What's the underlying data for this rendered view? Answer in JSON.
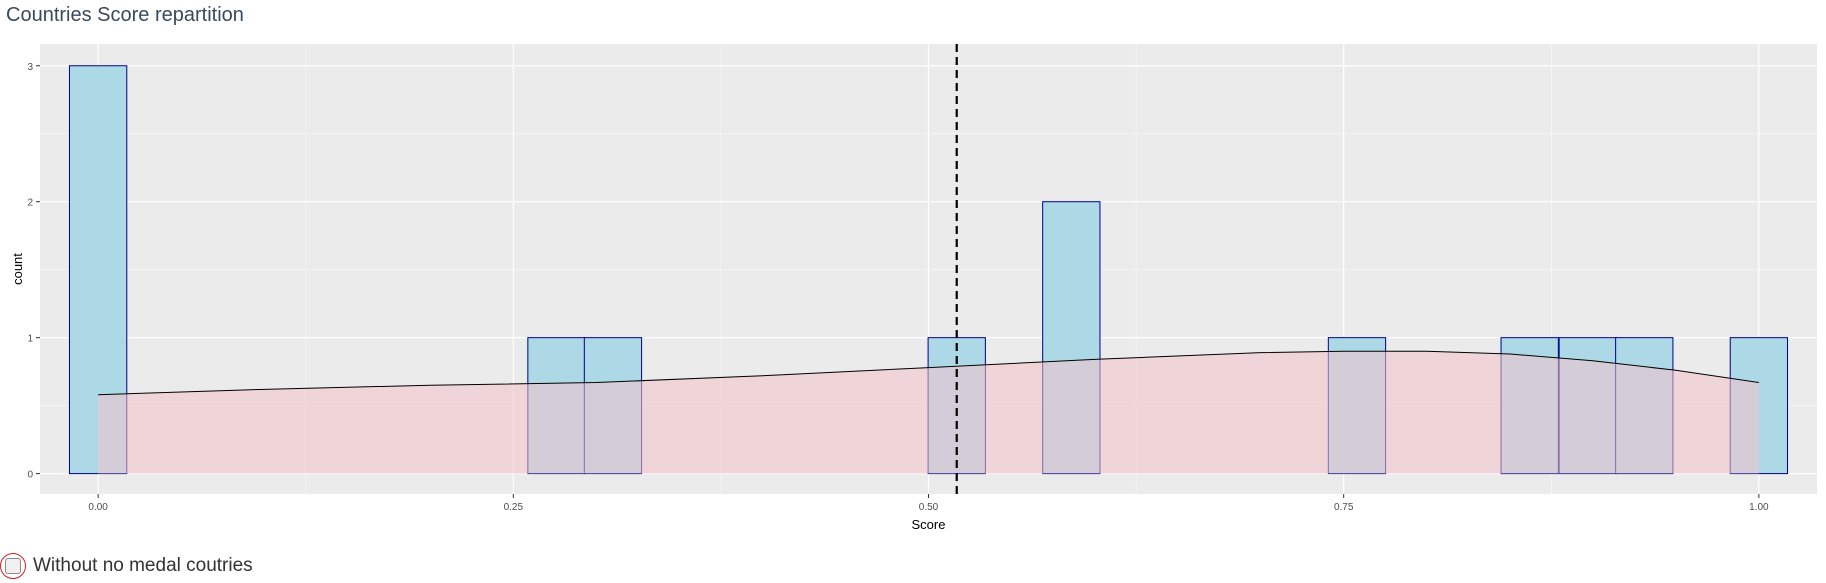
{
  "panel": {
    "title": "Countries Score repartition"
  },
  "option": {
    "label": "Without no medal coutries",
    "checked": false
  },
  "chart_data": {
    "type": "histogram",
    "xlabel": "Score",
    "ylabel": "count",
    "xlim": [
      -0.035,
      1.035
    ],
    "ylim": [
      -0.15,
      3.16
    ],
    "xticks": [
      0,
      0.25,
      0.5,
      0.75,
      1
    ],
    "xtick_labels": [
      "0.00",
      "0.25",
      "0.50",
      "0.75",
      "1.00"
    ],
    "yticks": [
      0,
      1,
      2,
      3
    ],
    "ytick_labels": [
      "0",
      "1",
      "2",
      "3"
    ],
    "bin_width": 0.0345,
    "bins": [
      {
        "center": 0.0,
        "count": 3
      },
      {
        "center": 0.276,
        "count": 1
      },
      {
        "center": 0.31,
        "count": 1
      },
      {
        "center": 0.517,
        "count": 1
      },
      {
        "center": 0.586,
        "count": 2
      },
      {
        "center": 0.758,
        "count": 1
      },
      {
        "center": 0.862,
        "count": 1
      },
      {
        "center": 0.897,
        "count": 1
      },
      {
        "center": 0.931,
        "count": 1
      },
      {
        "center": 1.0,
        "count": 1
      }
    ],
    "density_curve": {
      "x": [
        0.0,
        0.1,
        0.2,
        0.3,
        0.4,
        0.5,
        0.6,
        0.7,
        0.75,
        0.8,
        0.85,
        0.9,
        0.95,
        1.0
      ],
      "y": [
        0.58,
        0.62,
        0.65,
        0.67,
        0.72,
        0.78,
        0.84,
        0.89,
        0.9,
        0.9,
        0.88,
        0.83,
        0.76,
        0.67
      ]
    },
    "mean_line": 0.517,
    "colors": {
      "bar_fill": "#add8e6",
      "bar_stroke": "#00008b",
      "density_fill": "#f4c2c8",
      "panel_bg": "#ebebeb",
      "grid": "#ffffff"
    }
  }
}
